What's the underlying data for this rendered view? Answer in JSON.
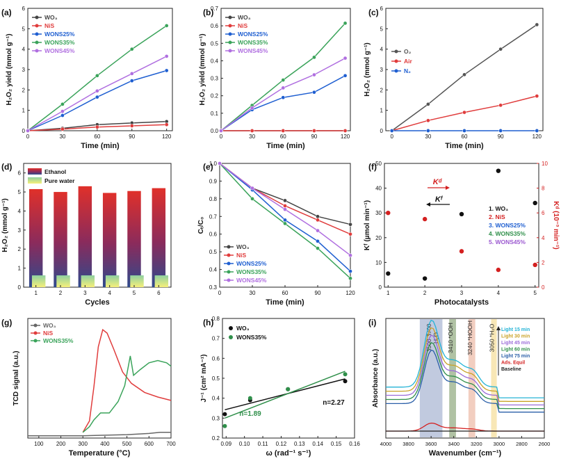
{
  "chart_data": [
    {
      "panel": "(a)",
      "type": "line",
      "xlabel": "Time (min)",
      "ylabel": "H₂O₂ yield (mmol g⁻¹)",
      "xlim": [
        0,
        125
      ],
      "ylim": [
        0,
        6
      ],
      "xticks": [
        "0",
        "30",
        "60",
        "90",
        "120"
      ],
      "yticks": [
        "0",
        "1",
        "2",
        "3",
        "4",
        "5",
        "6"
      ],
      "x": [
        0,
        30,
        60,
        90,
        120
      ],
      "legend": "top-left",
      "series": [
        {
          "name": "WO₃",
          "color": "#444444",
          "values": [
            0,
            0.12,
            0.3,
            0.38,
            0.45
          ]
        },
        {
          "name": "NiS",
          "color": "#e03c3c",
          "values": [
            0,
            0.08,
            0.18,
            0.24,
            0.3
          ]
        },
        {
          "name": "WONS25%",
          "color": "#1f5fd1",
          "values": [
            0,
            0.75,
            1.65,
            2.45,
            2.95
          ]
        },
        {
          "name": "WONS35%",
          "color": "#3aa35a",
          "values": [
            0,
            1.3,
            2.7,
            4.0,
            5.15
          ]
        },
        {
          "name": "WONS45%",
          "color": "#b06fe0",
          "values": [
            0,
            0.95,
            1.95,
            2.8,
            3.65
          ]
        }
      ]
    },
    {
      "panel": "(b)",
      "type": "line",
      "xlabel": "Time (min)",
      "ylabel": "H₂O₂ yield (mmol g⁻¹)",
      "xlim": [
        0,
        125
      ],
      "ylim": [
        0,
        0.7
      ],
      "xticks": [
        "0",
        "30",
        "60",
        "90",
        "120"
      ],
      "yticks": [
        "0.0",
        "0.1",
        "0.2",
        "0.3",
        "0.4",
        "0.5",
        "0.6",
        "0.7"
      ],
      "x": [
        0,
        30,
        60,
        90,
        120
      ],
      "legend": "top-left",
      "series": [
        {
          "name": "WO₃",
          "color": "#444444",
          "values": [
            0,
            0,
            0,
            0,
            0
          ]
        },
        {
          "name": "NiS",
          "color": "#e03c3c",
          "values": [
            0,
            0,
            0,
            0,
            0
          ]
        },
        {
          "name": "WONS25%",
          "color": "#1f5fd1",
          "values": [
            0,
            0.12,
            0.19,
            0.22,
            0.315
          ]
        },
        {
          "name": "WONS35%",
          "color": "#3aa35a",
          "values": [
            0,
            0.145,
            0.29,
            0.42,
            0.615
          ]
        },
        {
          "name": "WONS45%",
          "color": "#b06fe0",
          "values": [
            0,
            0.13,
            0.245,
            0.32,
            0.415
          ]
        }
      ]
    },
    {
      "panel": "(c)",
      "type": "line",
      "xlabel": "Time (min)",
      "ylabel": "H₂O₂ (mmol g⁻¹)",
      "xlim": [
        -5,
        125
      ],
      "ylim": [
        0,
        6
      ],
      "xticks": [
        "0",
        "30",
        "60",
        "90",
        "120"
      ],
      "yticks": [
        "0",
        "1",
        "2",
        "3",
        "4",
        "5",
        "6"
      ],
      "x": [
        0,
        30,
        60,
        90,
        120
      ],
      "legend": "left",
      "series": [
        {
          "name": "O₂",
          "color": "#555555",
          "values": [
            0,
            1.3,
            2.75,
            4.0,
            5.2
          ]
        },
        {
          "name": "Air",
          "color": "#e03c3c",
          "values": [
            0,
            0.5,
            0.9,
            1.25,
            1.7
          ]
        },
        {
          "name": "N₂",
          "color": "#1f5fd1",
          "values": [
            0,
            0,
            0,
            0,
            0
          ]
        }
      ]
    },
    {
      "panel": "(d)",
      "type": "bar",
      "xlabel": "Cycles",
      "ylabel": "H₂O₂ (mmol g⁻¹)",
      "ylim": [
        0,
        6.5
      ],
      "yticks": [
        "0",
        "1",
        "2",
        "3",
        "4",
        "5",
        "6"
      ],
      "categories": [
        "1",
        "2",
        "3",
        "4",
        "5",
        "6"
      ],
      "legend": "top-left",
      "series": [
        {
          "name": "Ethanol",
          "values": [
            5.15,
            5.0,
            5.3,
            4.95,
            5.05,
            5.2
          ]
        },
        {
          "name": "Pure water",
          "values": [
            0.62,
            0.62,
            0.62,
            0.62,
            0.62,
            0.62
          ]
        }
      ]
    },
    {
      "panel": "(e)",
      "type": "line",
      "xlabel": "Time (min)",
      "ylabel": "Cₜ/C₀",
      "xlim": [
        0,
        120
      ],
      "ylim": [
        0.3,
        1.0
      ],
      "xticks": [
        "0",
        "30",
        "60",
        "90",
        "120"
      ],
      "yticks": [
        "0.3",
        "0.4",
        "0.5",
        "0.6",
        "0.7",
        "0.8",
        "0.9",
        "1.0"
      ],
      "x": [
        0,
        30,
        60,
        90,
        120
      ],
      "legend": "bottom-left",
      "series": [
        {
          "name": "WO₃",
          "color": "#444444",
          "values": [
            1.0,
            0.86,
            0.79,
            0.7,
            0.655
          ]
        },
        {
          "name": "NiS",
          "color": "#e03c3c",
          "values": [
            1.0,
            0.86,
            0.76,
            0.68,
            0.6
          ]
        },
        {
          "name": "WONS25%",
          "color": "#1f5fd1",
          "values": [
            1.0,
            0.85,
            0.68,
            0.56,
            0.39
          ]
        },
        {
          "name": "WONS35%",
          "color": "#3aa35a",
          "values": [
            1.0,
            0.8,
            0.66,
            0.52,
            0.35
          ]
        },
        {
          "name": "WONS45%",
          "color": "#b06fe0",
          "values": [
            1.0,
            0.86,
            0.74,
            0.62,
            0.48
          ]
        }
      ]
    },
    {
      "panel": "(f)",
      "type": "scatter",
      "xlabel": "Photocatalysts",
      "ylabel": "Kᶠ (μmol min⁻¹)",
      "ylabel2": "Kᵈ (10⁻³ min⁻¹)",
      "xlim": [
        0.9,
        5.1
      ],
      "ylim": [
        0,
        50
      ],
      "ylim2": [
        0,
        10
      ],
      "xticks": [
        "1",
        "2",
        "3",
        "4",
        "5"
      ],
      "yticks": [
        "0",
        "10",
        "20",
        "30",
        "40",
        "50"
      ],
      "yticks2": [
        "0",
        "2",
        "4",
        "6",
        "8",
        "10"
      ],
      "labels": [
        "1. WO₃",
        "2. NiS",
        "3. WONS25%",
        "4. WONS35%",
        "5. WONS45%"
      ],
      "label_colors": [
        "#111111",
        "#d42020",
        "#1f5fd1",
        "#2f8f4a",
        "#9b59d0"
      ],
      "arrow_kd": "Kᵈ",
      "arrow_kf": "Kᶠ",
      "series": [
        {
          "name": "Kᶠ",
          "color": "#111111",
          "axis": "left",
          "x": [
            1,
            2,
            3,
            4,
            5
          ],
          "values": [
            5.5,
            3.5,
            29.5,
            47,
            34
          ]
        },
        {
          "name": "Kᵈ",
          "color": "#d42020",
          "axis": "right",
          "x": [
            1,
            2,
            3,
            4,
            5
          ],
          "values": [
            6.0,
            5.5,
            2.9,
            1.4,
            1.8
          ]
        }
      ]
    },
    {
      "panel": "(g)",
      "type": "line",
      "xlabel": "Temperature (°C)",
      "ylabel": "TCD signal (a.u.)",
      "xlim": [
        50,
        700
      ],
      "xticks": [
        "100",
        "200",
        "300",
        "400",
        "500",
        "600",
        "700"
      ],
      "legend": "top-left",
      "series": [
        {
          "name": "WO₃",
          "color": "#666666",
          "x": [
            50,
            100,
            200,
            300,
            400,
            500,
            600,
            650,
            700
          ],
          "values": [
            0.02,
            0.02,
            0.02,
            0.02,
            0.025,
            0.03,
            0.04,
            0.05,
            0.05
          ]
        },
        {
          "name": "NiS",
          "color": "#e03c3c",
          "x": [
            300,
            330,
            350,
            370,
            390,
            410,
            440,
            480,
            520,
            580,
            640,
            700
          ],
          "values": [
            0.05,
            0.15,
            0.45,
            0.8,
            0.95,
            0.92,
            0.78,
            0.58,
            0.48,
            0.4,
            0.36,
            0.33
          ]
        },
        {
          "name": "WONS35%",
          "color": "#3aa35a",
          "x": [
            300,
            330,
            350,
            380,
            420,
            460,
            490,
            515,
            530,
            560,
            600,
            640,
            680,
            700
          ],
          "values": [
            0.05,
            0.1,
            0.16,
            0.22,
            0.22,
            0.32,
            0.46,
            0.72,
            0.55,
            0.6,
            0.66,
            0.68,
            0.66,
            0.63
          ]
        }
      ]
    },
    {
      "panel": "(h)",
      "type": "scatter",
      "xlabel": "ω (rad⁻¹ s⁻¹)",
      "ylabel": "J⁻¹ (cm² mA⁻¹)",
      "xlim": [
        0.088,
        0.16
      ],
      "ylim": [
        0.2,
        0.8
      ],
      "xticks": [
        "0.09",
        "0.10",
        "0.11",
        "0.12",
        "0.13",
        "0.14",
        "0.15",
        "0.16"
      ],
      "yticks": [
        "0.2",
        "0.3",
        "0.4",
        "0.5",
        "0.6",
        "0.7",
        "0.8"
      ],
      "legend": "top-left",
      "annotations": [
        "n=2.27",
        "n=1.89"
      ],
      "series": [
        {
          "name": "WO₃",
          "color": "#111111",
          "x": [
            0.0893,
            0.1031,
            0.1237,
            0.1549
          ],
          "values": [
            0.32,
            0.39,
            0.445,
            0.485
          ],
          "fit": [
            0.342,
            0.497
          ]
        },
        {
          "name": "WONS35%",
          "color": "#2f8f4a",
          "x": [
            0.0893,
            0.1031,
            0.1237,
            0.1549
          ],
          "values": [
            0.26,
            0.4,
            0.445,
            0.52
          ],
          "fit": [
            0.3,
            0.535
          ]
        }
      ]
    },
    {
      "panel": "(i)",
      "type": "line",
      "xlabel": "Wavenumber (cm⁻¹)",
      "ylabel": "Absorbance (a.u.)",
      "xlim": [
        4000,
        2600
      ],
      "xticks": [
        "4000",
        "3800",
        "3600",
        "3400",
        "3200",
        "3000",
        "2800",
        "2600"
      ],
      "legend": "top-right",
      "bands": [
        {
          "label": "3500-3700",
          "label2": "H₂O",
          "from": 3700,
          "to": 3500,
          "color": "#8e9ec4"
        },
        {
          "label": "3410 *OOH",
          "from": 3440,
          "to": 3380,
          "color": "#6f8f5a"
        },
        {
          "label": "3240 *HOOH",
          "from": 3270,
          "to": 3210,
          "color": "#e8a58c"
        },
        {
          "label": "3050 *H₂O",
          "from": 3070,
          "to": 3020,
          "color": "#f2d37a"
        }
      ],
      "series": [
        {
          "name": "Light 15 min",
          "color": "#23b3d6",
          "scale": 1.0
        },
        {
          "name": "Light 30 min",
          "color": "#c9a227",
          "scale": 0.95
        },
        {
          "name": "Light 45 min",
          "color": "#9b6bd8",
          "scale": 0.9
        },
        {
          "name": "Light 60 min",
          "color": "#2f8f4a",
          "scale": 0.85
        },
        {
          "name": "Light 75 min",
          "color": "#2a5fa8",
          "scale": 0.8
        },
        {
          "name": "Ads. Equil",
          "color": "#d42020",
          "scale": 0.12
        },
        {
          "name": "Baseline",
          "color": "#222222",
          "scale": 0.0
        }
      ]
    }
  ]
}
